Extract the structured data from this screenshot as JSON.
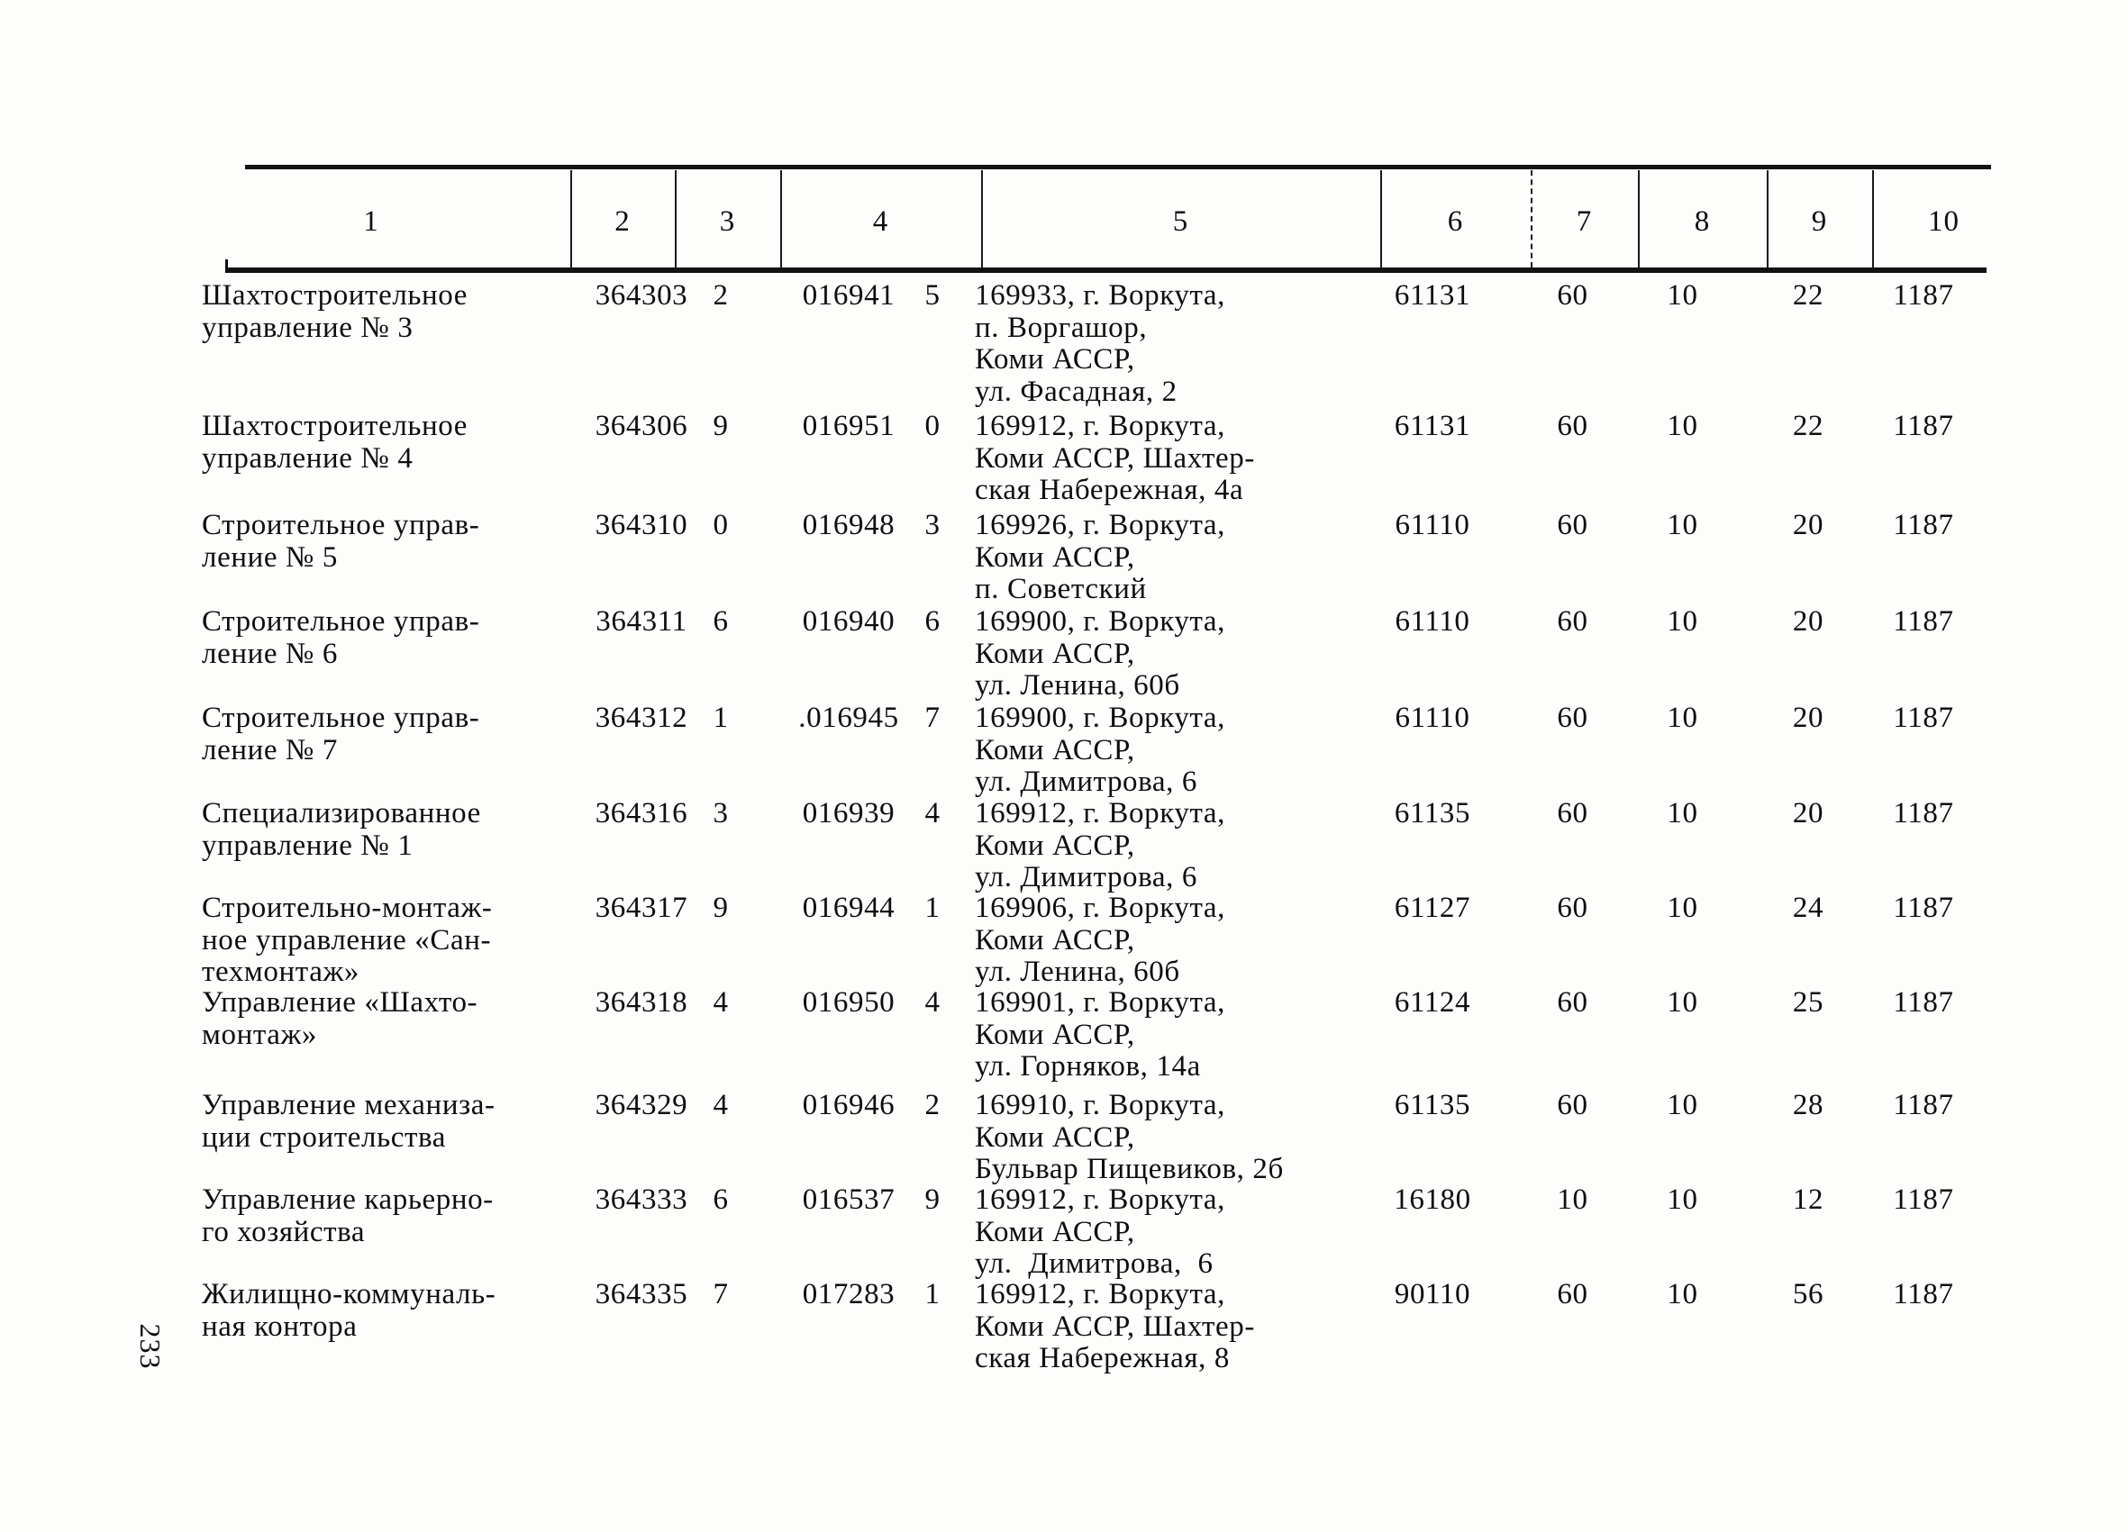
{
  "page_number": "233",
  "ink_color": "#0e0e0e",
  "paper_color": "#fdfdfb",
  "table": {
    "header": {
      "cols": [
        "1",
        "2",
        "3",
        "4",
        "5",
        "6",
        "7",
        "8",
        "9",
        "10"
      ]
    },
    "rows": [
      {
        "name": [
          "Шахтостроительное",
          "управление № 3"
        ],
        "okpo": "364303",
        "okpo_check": "2",
        "code": "016941",
        "code_check": "5",
        "address": [
          "169933, г. Воркута,",
          "п. Воргашор,",
          "Коми АССР,",
          "ул. Фасадная, 2"
        ],
        "col6": "61131",
        "col7": "60",
        "col8": "10",
        "col9": "22",
        "col10": "1187"
      },
      {
        "name": [
          "Шахтостроительное",
          "управление № 4"
        ],
        "okpo": "364306",
        "okpo_check": "9",
        "code": "016951",
        "code_check": "0",
        "address": [
          "169912, г. Воркута,",
          "Коми АССР, Шахтер-",
          "ская Набережная, 4а"
        ],
        "col6": "61131",
        "col7": "60",
        "col8": "10",
        "col9": "22",
        "col10": "1187"
      },
      {
        "name": [
          "Строительное управ-",
          "ление № 5"
        ],
        "okpo": "364310",
        "okpo_check": "0",
        "code": "016948",
        "code_check": "3",
        "address": [
          "169926, г. Воркута,",
          "Коми АССР,",
          "п. Советский"
        ],
        "col6": "61110",
        "col7": "60",
        "col8": "10",
        "col9": "20",
        "col10": "1187"
      },
      {
        "name": [
          "Строительное управ-",
          "ление № 6"
        ],
        "okpo": "364311",
        "okpo_check": "6",
        "code": "016940",
        "code_check": "6",
        "address": [
          "169900, г. Воркута,",
          "Коми АССР,",
          "ул. Ленина, 60б"
        ],
        "col6": "61110",
        "col7": "60",
        "col8": "10",
        "col9": "20",
        "col10": "1187"
      },
      {
        "name": [
          "Строительное управ-",
          "ление № 7"
        ],
        "okpo": "364312",
        "okpo_check": "1",
        "code": ".016945",
        "code_check": "7",
        "address": [
          "169900, г. Воркута,",
          "Коми АССР,",
          "ул. Димитрова, 6"
        ],
        "col6": "61110",
        "col7": "60",
        "col8": "10",
        "col9": "20",
        "col10": "1187"
      },
      {
        "name": [
          "Специализированное",
          "управление № 1"
        ],
        "okpo": "364316",
        "okpo_check": "3",
        "code": "016939",
        "code_check": "4",
        "address": [
          "169912, г. Воркута,",
          "Коми АССР,",
          "ул. Димитрова, 6"
        ],
        "col6": "61135",
        "col7": "60",
        "col8": "10",
        "col9": "20",
        "col10": "1187"
      },
      {
        "name": [
          "Строительно-монтаж-",
          "ное управление «Сан-",
          "техмонтаж»"
        ],
        "okpo": "364317",
        "okpo_check": "9",
        "code": "016944",
        "code_check": "1",
        "address": [
          "169906, г. Воркута,",
          "Коми АССР,",
          "ул. Ленина, 60б"
        ],
        "col6": "61127",
        "col7": "60",
        "col8": "10",
        "col9": "24",
        "col10": "1187"
      },
      {
        "name": [
          "Управление «Шахто-",
          "монтаж»"
        ],
        "okpo": "364318",
        "okpo_check": "4",
        "code": "016950",
        "code_check": "4",
        "address": [
          "169901, г. Воркута,",
          "Коми АССР,",
          "ул. Горняков, 14а"
        ],
        "col6": "61124",
        "col7": "60",
        "col8": "10",
        "col9": "25",
        "col10": "1187"
      },
      {
        "name": [
          "Управление механиза-",
          "ции строительства"
        ],
        "okpo": "364329",
        "okpo_check": "4",
        "code": "016946",
        "code_check": "2",
        "address": [
          "169910, г. Воркута,",
          "Коми АССР,",
          "Бульвар Пищевиков, 2б"
        ],
        "col6": "61135",
        "col7": "60",
        "col8": "10",
        "col9": "28",
        "col10": "1187"
      },
      {
        "name": [
          "Управление карьерно-",
          "го хозяйства"
        ],
        "okpo": "364333",
        "okpo_check": "6",
        "code": "016537",
        "code_check": "9",
        "address": [
          "169912, г. Воркута,",
          "Коми АССР,",
          "ул.  Димитрова,  6"
        ],
        "col6": "16180",
        "col7": "10",
        "col8": "10",
        "col9": "12",
        "col10": "1187"
      },
      {
        "name": [
          "Жилищно-коммуналь-",
          "ная контора"
        ],
        "okpo": "364335",
        "okpo_check": "7",
        "code": "017283",
        "code_check": "1",
        "address": [
          "169912, г. Воркута,",
          "Коми АССР, Шахтер-",
          "ская Набережная, 8"
        ],
        "col6": "90110",
        "col7": "60",
        "col8": "10",
        "col9": "56",
        "col10": "1187"
      }
    ]
  }
}
